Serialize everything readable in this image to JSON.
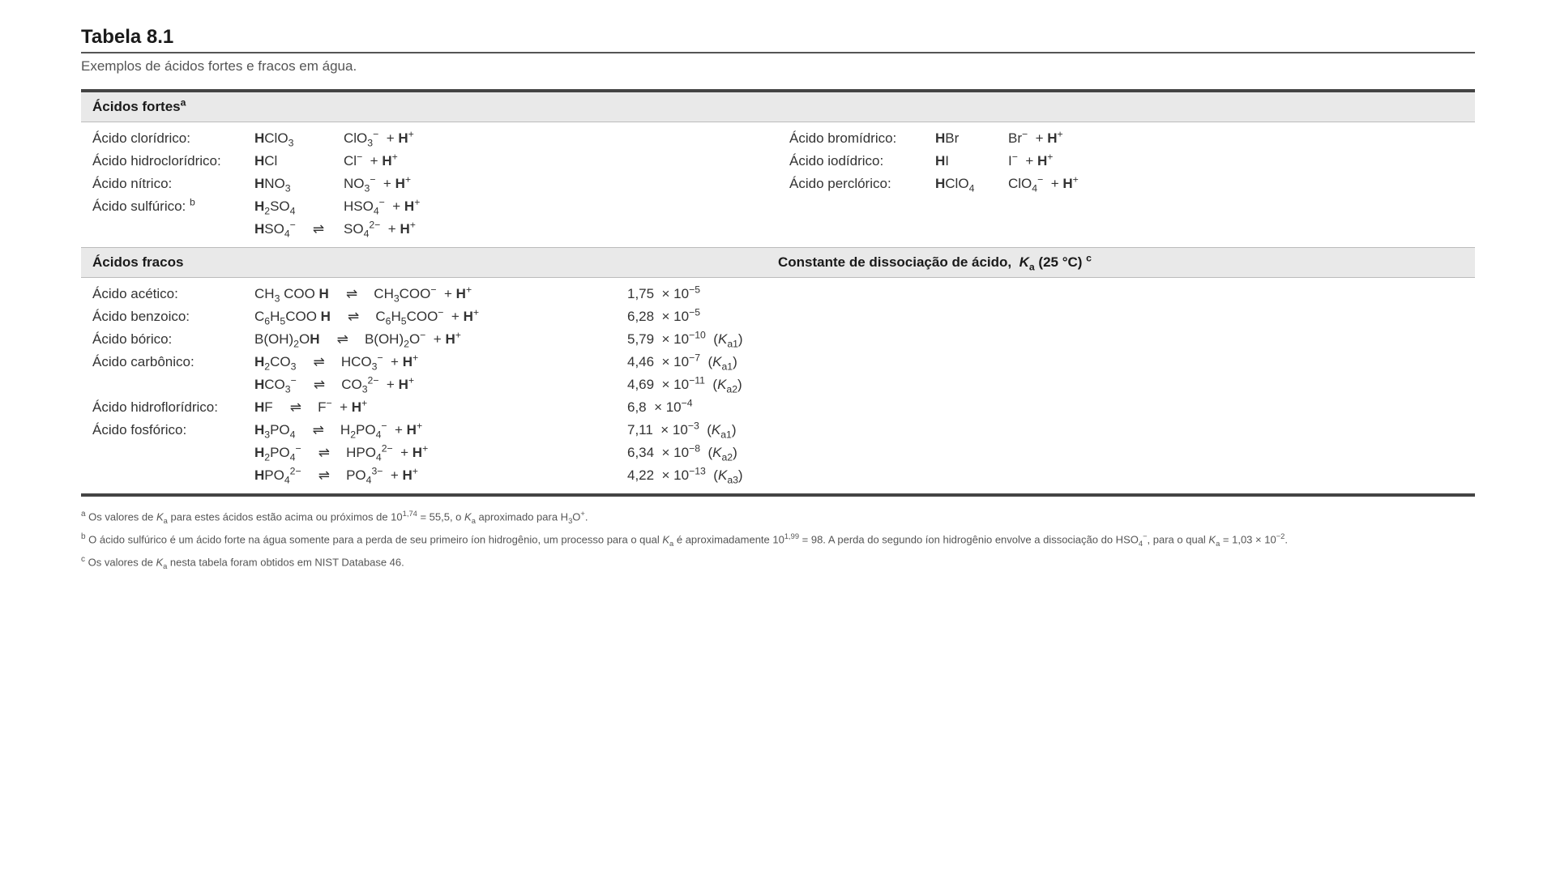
{
  "title": "Tabela 8.1",
  "subtitle": "Exemplos de ácidos fortes e fracos em água.",
  "header_strong_html": "Ácidos fortes<sup>a</sup>",
  "header_weak": "Ácidos fracos",
  "header_ka_html": "Constante de dissociação de ácido, &nbsp;<span class='i'>K</span><sub>a</sub> (25 °C) <sup>c</sup>",
  "strong_left": [
    {
      "name": "Ácido clorídrico:",
      "formula_html": "<span class='b'>H</span>ClO<sub>3</sub>",
      "products_html": "ClO<sub>3</sub><sup>&#8722;</sup> &nbsp;+ <span class='b'>H</span><sup>+</sup>"
    },
    {
      "name": "Ácido hidroclorídrico:",
      "formula_html": "<span class='b'>H</span>Cl",
      "products_html": "Cl<sup>&#8722;</sup> &nbsp;+ <span class='b'>H</span><sup>+</sup>"
    },
    {
      "name": "Ácido nítrico:",
      "formula_html": "<span class='b'>H</span>NO<sub>3</sub>",
      "products_html": "NO<sub>3</sub><sup>&#8722;</sup> &nbsp;+ <span class='b'>H</span><sup>+</sup>"
    },
    {
      "name_html": "Ácido sulfúrico: <sup>b</sup>",
      "formula_html": "<span class='b'>H</span><sub>2</sub>SO<sub>4</sub>",
      "products_html": "HSO<sub>4</sub><sup>&#8722;</sup> &nbsp;+ <span class='b'>H</span><sup>+</sup>",
      "second_formula_html": "<span class='b'>H</span>SO<sub>4</sub><sup>&#8722;</sup>",
      "second_products_html": "SO<sub>4</sub><sup>2&#8722;</sup> &nbsp;+ <span class='b'>H</span><sup>+</sup>",
      "second_arrow": "⇌"
    }
  ],
  "strong_right": [
    {
      "name": "Ácido bromídrico:",
      "formula_html": "<span class='b'>H</span>Br",
      "products_html": "Br<sup>&#8722;</sup> &nbsp;+ <span class='b'>H</span><sup>+</sup>"
    },
    {
      "name": "Ácido iodídrico:",
      "formula_html": "<span class='b'>H</span>I",
      "products_html": "I<sup>&#8722;</sup> &nbsp;+ <span class='b'>H</span><sup>+</sup>"
    },
    {
      "name": "Ácido perclórico:",
      "formula_html": "<span class='b'>H</span>ClO<sub>4</sub>",
      "products_html": "ClO<sub>4</sub><sup>&#8722;</sup> &nbsp;+ <span class='b'>H</span><sup>+</sup>"
    }
  ],
  "weak": [
    {
      "name": "Ácido acético:",
      "eq_html": "CH<sub>3</sub> COO <span class='b'>H</span> <span class='arrow'>⇌</span> CH<sub>3</sub>COO<sup>&#8722;</sup> &nbsp;+ <span class='b'>H</span><sup>+</sup>",
      "ka_html": "1,75 &nbsp;× 10<sup>&#8722;5</sup>"
    },
    {
      "name": "Ácido benzoico:",
      "eq_html": "C<sub>6</sub>H<sub>5</sub>COO <span class='b'>H</span> <span class='arrow'>⇌</span> C<sub>6</sub>H<sub>5</sub>COO<sup>&#8722;</sup> &nbsp;+ <span class='b'>H</span><sup>+</sup>",
      "ka_html": "6,28 &nbsp;× 10<sup>&#8722;5</sup>"
    },
    {
      "name": "Ácido bórico:",
      "eq_html": "B(OH)<sub>2</sub>O<span class='b'>H</span> <span class='arrow'>⇌</span> B(OH)<sub>2</sub>O<sup>&#8722;</sup> &nbsp;+ <span class='b'>H</span><sup>+</sup>",
      "ka_html": "5,79 &nbsp;× 10<sup>&#8722;10</sup> &nbsp;(<span class='i'>K</span><sub>a1</sub>)"
    },
    {
      "name": "Ácido carbônico:",
      "eq_html": "<span class='b'>H</span><sub>2</sub>CO<sub>3</sub> <span class='arrow'>⇌</span> HCO<sub>3</sub><sup>&#8722;</sup> &nbsp;+ <span class='b'>H</span><sup>+</sup>",
      "ka_html": "4,46 &nbsp;× 10<sup>&#8722;7</sup> &nbsp;(<span class='i'>K</span><sub>a1</sub>)"
    },
    {
      "name": "",
      "eq_html": "<span class='b'>H</span>CO<sub>3</sub><sup>&#8722;</sup> <span class='arrow'>⇌</span> CO<sub>3</sub><sup>2&#8722;</sup> &nbsp;+ <span class='b'>H</span><sup>+</sup>",
      "ka_html": "4,69 &nbsp;× 10<sup>&#8722;11</sup> &nbsp;(<span class='i'>K</span><sub>a2</sub>)"
    },
    {
      "name": "Ácido hidroflorídrico:",
      "eq_html": "<span class='b'>H</span>F <span class='arrow'>⇌</span> F<sup>&#8722;</sup> &nbsp;+ <span class='b'>H</span><sup>+</sup>",
      "ka_html": "6,8 &nbsp;× 10<sup>&#8722;4</sup>"
    },
    {
      "name": "Ácido fosfórico:",
      "eq_html": "<span class='b'>H</span><sub>3</sub>PO<sub>4</sub> <span class='arrow'>⇌</span> H<sub>2</sub>PO<sub>4</sub><sup>&#8722;</sup> &nbsp;+ <span class='b'>H</span><sup>+</sup>",
      "ka_html": "7,11 &nbsp;× 10<sup>&#8722;3</sup> &nbsp;(<span class='i'>K</span><sub>a1</sub>)"
    },
    {
      "name": "",
      "eq_html": "<span class='b'>H</span><sub>2</sub>PO<sub>4</sub><sup>&#8722;</sup> <span class='arrow'>⇌</span> HPO<sub>4</sub><sup>2&#8722;</sup> &nbsp;+ <span class='b'>H</span><sup>+</sup>",
      "ka_html": "6,34 &nbsp;× 10<sup>&#8722;8</sup> &nbsp;(<span class='i'>K</span><sub>a2</sub>)"
    },
    {
      "name": "",
      "eq_html": "<span class='b'>H</span>PO<sub>4</sub><sup>2&#8722;</sup> <span class='arrow'>⇌</span> PO<sub>4</sub><sup>3&#8722;</sup> &nbsp;+ <span class='b'>H</span><sup>+</sup>",
      "ka_html": "4,22 &nbsp;× 10<sup>&#8722;13</sup> &nbsp;(<span class='i'>K</span><sub>a3</sub>)"
    }
  ],
  "footnotes": [
    "<span class='fnsup'>a</span> Os valores de <span class='i'>K</span><sub>a</sub> para estes ácidos estão acima ou próximos de 10<sup>1,74</sup> = 55,5, o <span class='i'>K</span><sub>a</sub> aproximado para H<sub>3</sub>O<sup>+</sup>.",
    "<span class='fnsup'>b</span> O ácido sulfúrico é um ácido forte na água somente para a perda de seu primeiro íon hidrogênio, um processo para o qual <span class='i'>K</span><sub>a</sub> é aproximadamente 10<sup>1,99</sup> = 98. A perda do segundo íon hidrogênio envolve a dissociação do HSO<sub>4</sub><sup>&#8722;</sup>, para o qual <span class='i'>K</span><sub>a</sub> = 1,03 × 10<sup>&#8722;2</sup>.",
    "<span class='fnsup'>c</span> Os valores de <span class='i'>K</span><sub>a</sub> nesta tabela foram obtidos em NIST Database 46."
  ],
  "arrow_right": "→"
}
